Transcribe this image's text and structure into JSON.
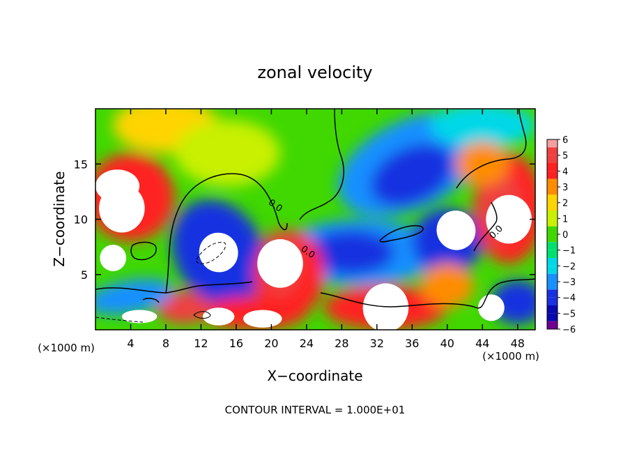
{
  "chart_data": {
    "type": "heatmap",
    "title": "zonal velocity",
    "xlabel": "X−coordinate",
    "ylabel": "Z−coordinate",
    "x_unit_left": "(×1000 m)",
    "x_unit_right": "(×1000 m)",
    "xlim": [
      0,
      50
    ],
    "ylim": [
      0,
      20
    ],
    "xticks": [
      4,
      8,
      12,
      16,
      20,
      24,
      28,
      32,
      36,
      40,
      44,
      48
    ],
    "yticks": [
      5,
      10,
      15
    ],
    "colorbar": {
      "ticks": [
        6,
        5,
        4,
        3,
        2,
        1,
        0,
        -1,
        -2,
        -3,
        -4,
        -5,
        -6
      ],
      "tick_labels": [
        "6",
        "5",
        "4",
        "3",
        "2",
        "1",
        "0",
        "−1",
        "−2",
        "−3",
        "−4",
        "−5",
        "−6"
      ],
      "colors": {
        "6": "#f4a0a0",
        "5": "#ee4040",
        "4": "#ff2020",
        "3": "#ff8c00",
        "2": "#ffd400",
        "1": "#c8f000",
        "0": "#40d800",
        "-1": "#00e070",
        "-2": "#00d8e8",
        "-3": "#1890ff",
        "-4": "#1830e0",
        "-5": "#0808b0",
        "-6": "#700090"
      },
      "out_of_range_color": "#ffffff"
    },
    "field_features": [
      {
        "kind": "max",
        "x": 3,
        "z": 11,
        "value": 6
      },
      {
        "kind": "max",
        "x": 21,
        "z": 6,
        "value": 6
      },
      {
        "kind": "max",
        "x": 47,
        "z": 10,
        "value": 6
      },
      {
        "kind": "max",
        "x": 33,
        "z": 2,
        "value": 6
      },
      {
        "kind": "min",
        "x": 14,
        "z": 7,
        "value": -6
      },
      {
        "kind": "min",
        "x": 41,
        "z": 9,
        "value": -6
      },
      {
        "kind": "min",
        "x": 36,
        "z": 14,
        "value": -5
      },
      {
        "kind": "min",
        "x": 29,
        "z": 7,
        "value": -4
      }
    ],
    "contour_label": "0.0",
    "footer": "CONTOUR INTERVAL = 1.000E+01"
  }
}
